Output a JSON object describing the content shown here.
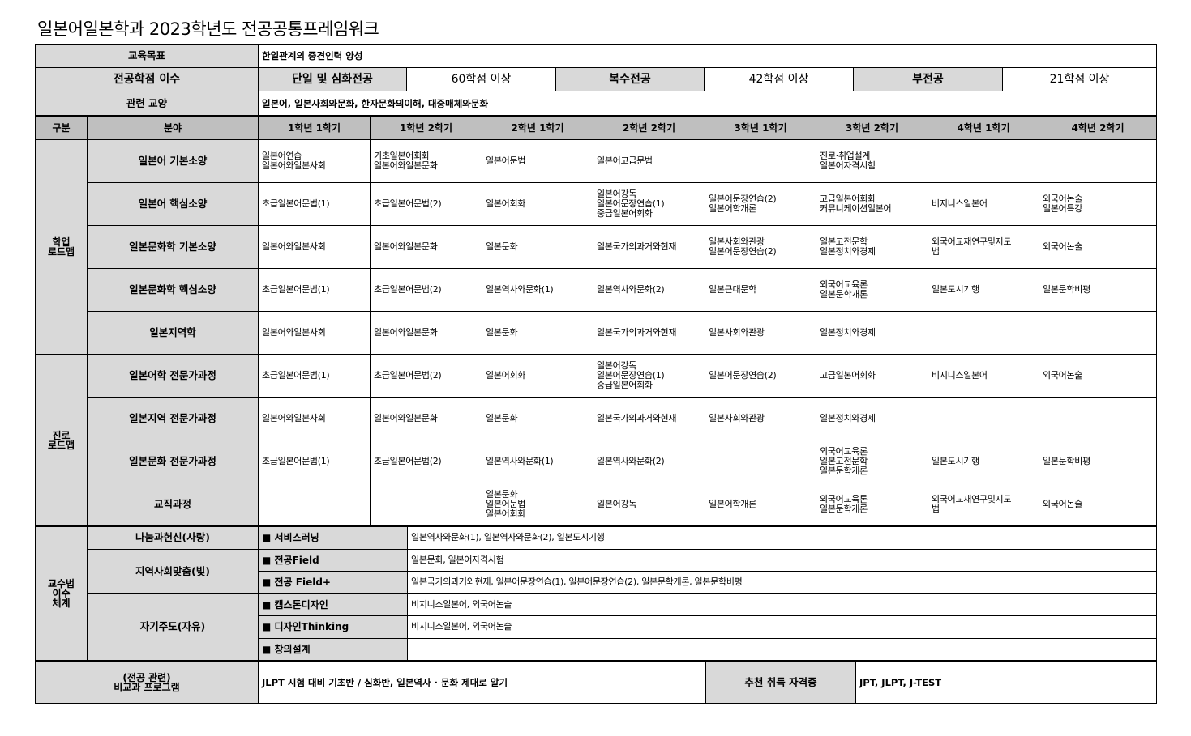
{
  "title": "일본어일본학과 2023학년도 전공공통프레임워크",
  "goal": {
    "label": "교육목표",
    "value": "한일관계의 중견인력 양성"
  },
  "credits": {
    "label": "전공학점 이수",
    "items": [
      {
        "type": "단일 및 심화전공",
        "value": "60학점 이상"
      },
      {
        "type": "복수전공",
        "value": "42학점 이상"
      },
      {
        "type": "부전공",
        "value": "21학점 이상"
      }
    ]
  },
  "liberal": {
    "label": "관련 교양",
    "value": "일본어, 일본사회와문화, 한자문화의이해, 대중매체와문화"
  },
  "header": [
    "구분",
    "분야",
    "1학년 1학기",
    "1학년 2학기",
    "2학년 1학기",
    "2학년 2학기",
    "3학년 1학기",
    "3학년 2학기",
    "4학년 1학기",
    "4학년 2학기"
  ],
  "roadmaps": [
    {
      "section": "학업\n로드맵",
      "rows": [
        {
          "field": "일본어 기본소양",
          "cells": [
            "일본어연습\n일본어와일본사회",
            "기초일본어회화\n일본어와일본문화",
            "일본어문법",
            "일본어고급문법",
            "",
            "진로·취업설계\n일본어자격시험",
            "",
            ""
          ]
        },
        {
          "field": "일본어 핵심소양",
          "cells": [
            "초급일본어문법(1)",
            "초급일본어문법(2)",
            "일본어회화",
            "일본어강독\n일본어문장연습(1)\n중급일본어회화",
            "일본어문장연습(2)\n일본어학개론",
            "고급일본어회화\n커뮤니케이션일본어",
            "비지니스일본어",
            "외국어논술\n일본어특강"
          ]
        },
        {
          "field": "일본문화학 기본소양",
          "cells": [
            "일본어와일본사회",
            "일본어와일본문화",
            "일본문화",
            "일본국가의과거와현재",
            "일본사회와관광\n일본어문장연습(2)",
            "일본고전문학\n일본정치와경제",
            "외국어교재연구및지도\n법",
            "외국어논술"
          ]
        },
        {
          "field": "일본문화학 핵심소양",
          "cells": [
            "초급일본어문법(1)",
            "초급일본어문법(2)",
            "일본역사와문화(1)",
            "일본역사와문화(2)",
            "일본근대문학",
            "외국어교육론\n일본문학개론",
            "일본도시기행",
            "일본문학비평"
          ]
        },
        {
          "field": "일본지역학",
          "cells": [
            "일본어와일본사회",
            "일본어와일본문화",
            "일본문화",
            "일본국가의과거와현재",
            "일본사회와관광",
            "일본정치와경제",
            "",
            ""
          ]
        }
      ]
    },
    {
      "section": "진로\n로드맵",
      "rows": [
        {
          "field": "일본어학 전문가과정",
          "cells": [
            "초급일본어문법(1)",
            "초급일본어문법(2)",
            "일본어회화",
            "일본어강독\n일본어문장연습(1)\n중급일본어회화",
            "일본어문장연습(2)",
            "고급일본어회화",
            "비지니스일본어",
            "외국어논술"
          ]
        },
        {
          "field": "일본지역 전문가과정",
          "cells": [
            "일본어와일본사회",
            "일본어와일본문화",
            "일본문화",
            "일본국가의과거와현재",
            "일본사회와관광",
            "일본정치와경제",
            "",
            ""
          ]
        },
        {
          "field": "일본문화 전문가과정",
          "cells": [
            "초급일본어문법(1)",
            "초급일본어문법(2)",
            "일본역사와문화(1)",
            "일본역사와문화(2)",
            "",
            "외국어교육론\n일본고전문학\n일본문학개론",
            "일본도시기행",
            "일본문학비평"
          ]
        },
        {
          "field": "교직과정",
          "cells": [
            "",
            "",
            "일본문화\n일본어문법\n일본어회화",
            "일본어강독",
            "일본어학개론",
            "외국어교육론\n일본문학개론",
            "외국어교재연구및지도\n법",
            "외국어논술"
          ]
        }
      ]
    }
  ],
  "teaching": {
    "section": "교수법\n이수\n체계",
    "groups": [
      {
        "name": "나눔과헌신(사랑)",
        "items": [
          {
            "method": "■ 서비스러닝",
            "courses": "일본역사와문화(1), 일본역사와문화(2), 일본도시기행"
          }
        ]
      },
      {
        "name": "지역사회맞춤(빛)",
        "items": [
          {
            "method": "■ 전공Field",
            "courses": "일본문화, 일본어자격시험"
          },
          {
            "method": "■ 전공 Field+",
            "courses": "일본국가의과거와현재, 일본어문장연습(1), 일본어문장연습(2), 일본문학개론, 일본문학비평"
          }
        ]
      },
      {
        "name": "자기주도(자유)",
        "items": [
          {
            "method": "■ 캡스톤디자인",
            "courses": "비지니스일본어, 외국어논술"
          },
          {
            "method": "■ 디자인Thinking",
            "courses": "비지니스일본어, 외국어논술"
          },
          {
            "method": "■ 창의설계",
            "courses": ""
          }
        ]
      }
    ]
  },
  "extra": {
    "label": "(전공 관련)\n비교과 프로그램",
    "value": "JLPT 시험 대비 기초반 / 심화반, 일본역사 · 문화 제대로 알기",
    "cert_label": "추천 취득 자격증",
    "cert_value": "JPT, JLPT, J-TEST"
  }
}
